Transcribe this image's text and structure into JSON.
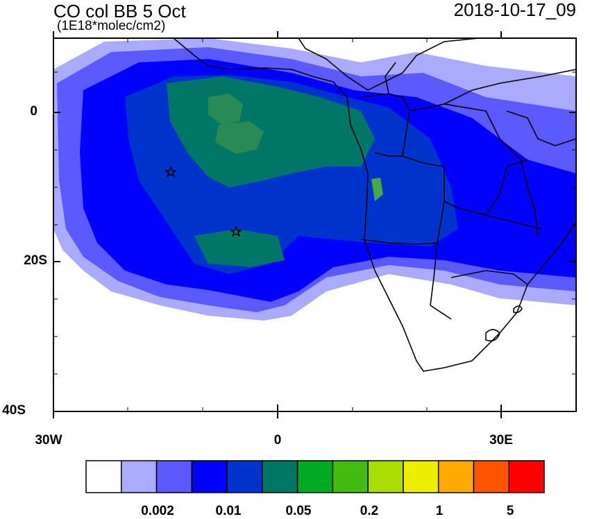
{
  "title": "CO col BB 5 Oct",
  "subtitle": "(1E18*molec/cm2)",
  "timestamp": "2018-10-17_09",
  "axes": {
    "y_ticks": [
      "0",
      "20S",
      "40S"
    ],
    "x_ticks": [
      "30W",
      "0",
      "30E"
    ]
  },
  "colorbar": {
    "colors": [
      "#ffffff",
      "#aaaaff",
      "#5a5aff",
      "#0000ff",
      "#0033cc",
      "#007766",
      "#00aa22",
      "#44bb11",
      "#aadd00",
      "#eeee00",
      "#ffaa00",
      "#ff5500",
      "#ff0000"
    ],
    "labels": [
      "0.002",
      "0.01",
      "0.05",
      "0.2",
      "1",
      "5"
    ]
  },
  "map": {
    "lon_range": [
      -30,
      40
    ],
    "lat_range": [
      -40,
      10
    ],
    "markers": [
      {
        "symbol": "star",
        "lon": -14.5,
        "lat": -8
      },
      {
        "symbol": "star",
        "lon": -5.5,
        "lat": -16
      }
    ]
  }
}
